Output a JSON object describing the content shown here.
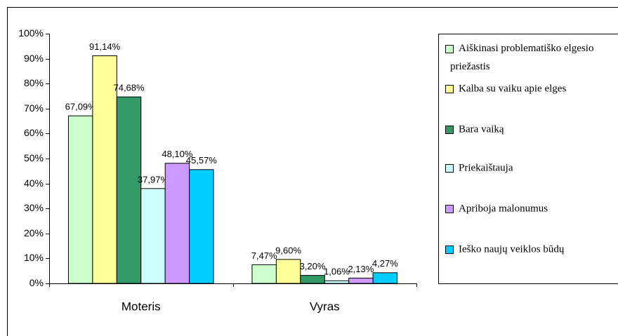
{
  "chart_data": {
    "type": "bar",
    "categories": [
      "Moteris",
      "Vyras"
    ],
    "series": [
      {
        "name": "Aiškinasi problematiško elgesio priežastis",
        "color": "#ccffcc",
        "values": [
          67.09,
          7.47
        ],
        "value_labels": [
          "67,09%",
          "7,47%"
        ]
      },
      {
        "name": "Kalba su vaiku apie elges",
        "color": "#ffff99",
        "values": [
          91.14,
          9.6
        ],
        "value_labels": [
          "91,14%",
          "9,60%"
        ]
      },
      {
        "name": "Bara vaiką",
        "color": "#339966",
        "values": [
          74.68,
          3.2
        ],
        "value_labels": [
          "74,68%",
          "3,20%"
        ]
      },
      {
        "name": "Priekaištauja",
        "color": "#ccffff",
        "values": [
          37.97,
          1.06
        ],
        "value_labels": [
          "37,97%",
          "1,06%"
        ]
      },
      {
        "name": "Apriboja malonumus",
        "color": "#cc99ff",
        "values": [
          48.1,
          2.13
        ],
        "value_labels": [
          "48,10%",
          "2,13%"
        ]
      },
      {
        "name": "Ieško naujų veiklos būdų",
        "color": "#00ccff",
        "values": [
          45.57,
          4.27
        ],
        "value_labels": [
          "45,57%",
          "4,27%"
        ]
      }
    ],
    "ylim": [
      0,
      100
    ],
    "yticks": [
      {
        "value": 0,
        "label": "0%"
      },
      {
        "value": 10,
        "label": "10%"
      },
      {
        "value": 20,
        "label": "20%"
      },
      {
        "value": 30,
        "label": "30%"
      },
      {
        "value": 40,
        "label": "40%"
      },
      {
        "value": 50,
        "label": "50%"
      },
      {
        "value": 60,
        "label": "60%"
      },
      {
        "value": 70,
        "label": "70%"
      },
      {
        "value": 80,
        "label": "80%"
      },
      {
        "value": 90,
        "label": "90%"
      },
      {
        "value": 100,
        "label": "100%"
      }
    ],
    "grid": false,
    "legend": "right"
  }
}
